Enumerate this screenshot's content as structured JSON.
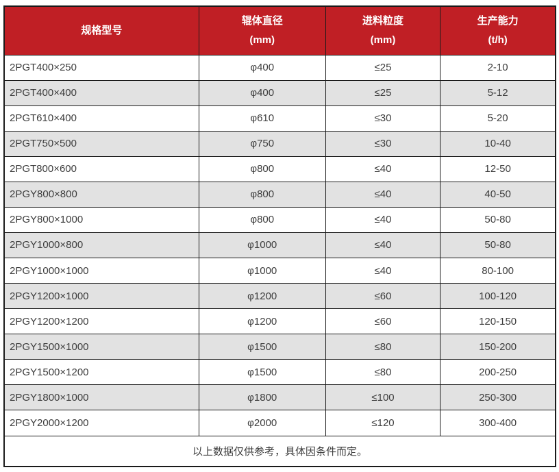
{
  "table": {
    "columns": [
      {
        "line1": "规格型号",
        "line2": ""
      },
      {
        "line1": "辊体直径",
        "line2": "(mm)"
      },
      {
        "line1": "进料粒度",
        "line2": "(mm)"
      },
      {
        "line1": "生产能力",
        "line2": "(t/h)"
      }
    ],
    "rows": [
      [
        "2PGT400×250",
        "φ400",
        "≤25",
        "2-10"
      ],
      [
        "2PGT400×400",
        "φ400",
        "≤25",
        "5-12"
      ],
      [
        "2PGT610×400",
        "φ610",
        "≤30",
        "5-20"
      ],
      [
        "2PGT750×500",
        "φ750",
        "≤30",
        "10-40"
      ],
      [
        "2PGT800×600",
        "φ800",
        "≤40",
        "12-50"
      ],
      [
        "2PGY800×800",
        "φ800",
        "≤40",
        "40-50"
      ],
      [
        "2PGY800×1000",
        "φ800",
        "≤40",
        "50-80"
      ],
      [
        "2PGY1000×800",
        "φ1000",
        "≤40",
        "50-80"
      ],
      [
        "2PGY1000×1000",
        "φ1000",
        "≤40",
        "80-100"
      ],
      [
        "2PGY1200×1000",
        "φ1200",
        "≤60",
        "100-120"
      ],
      [
        "2PGY1200×1200",
        "φ1200",
        "≤60",
        "120-150"
      ],
      [
        "2PGY1500×1000",
        "φ1500",
        "≤80",
        "150-200"
      ],
      [
        "2PGY1500×1200",
        "φ1500",
        "≤80",
        "200-250"
      ],
      [
        "2PGY1800×1000",
        "φ1800",
        "≤100",
        "250-300"
      ],
      [
        "2PGY2000×1200",
        "φ2000",
        "≤120",
        "300-400"
      ]
    ],
    "footnote": "以上数据仅供参考，具体因条件而定。"
  },
  "colors": {
    "header_bg": "#c01f25",
    "header_text": "#ffffff",
    "row_alt_bg": "#e2e2e2",
    "row_bg": "#ffffff",
    "border": "#1a1a1a",
    "body_text": "#3d3d3d"
  }
}
